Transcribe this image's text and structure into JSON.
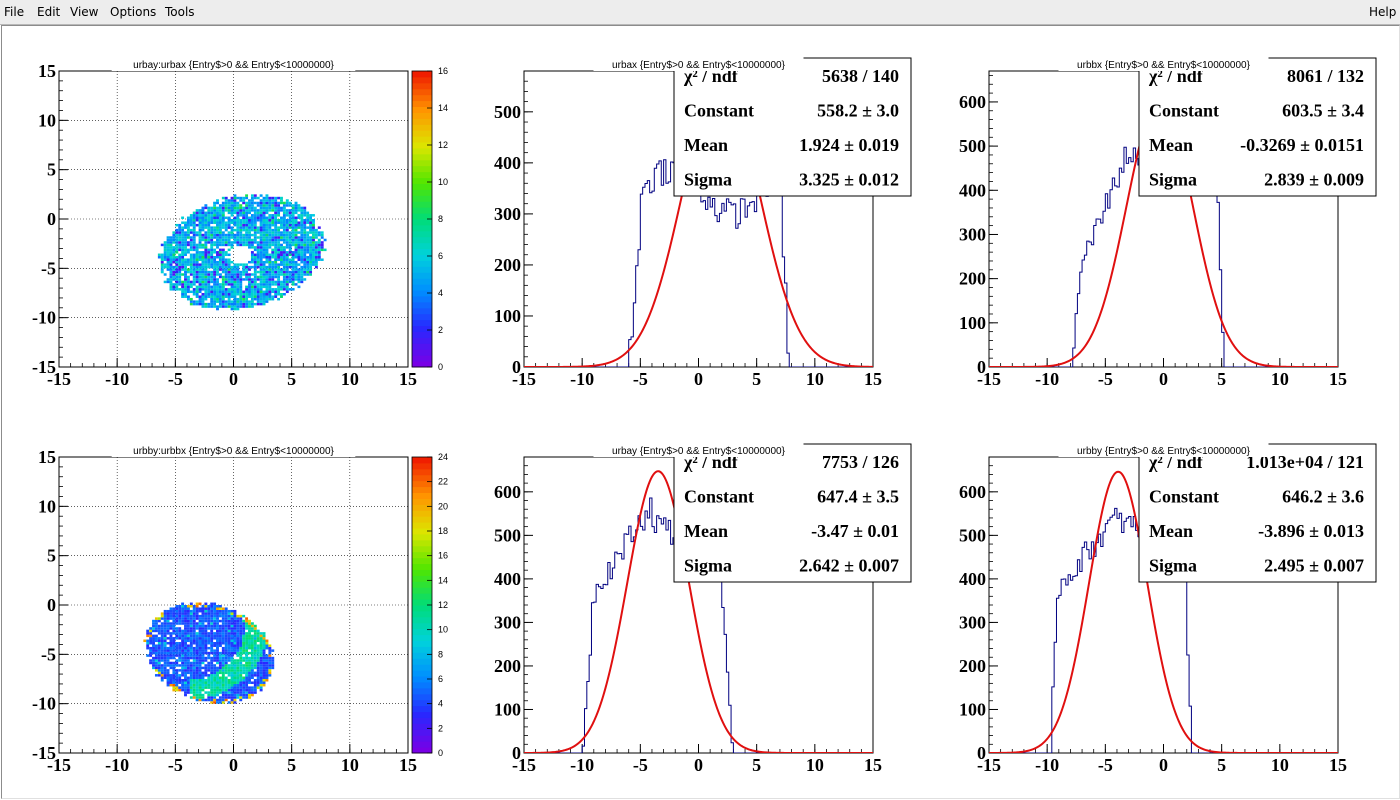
{
  "menu": {
    "file": "File",
    "edit": "Edit",
    "view": "View",
    "options": "Options",
    "tools": "Tools",
    "help": "Help"
  },
  "colors": {
    "histogram_line": "#000080",
    "fit_curve": "#e01010",
    "grid": "#000000"
  },
  "pads": [
    {
      "id": "urbay-vs-urbax",
      "title": "urbay:urbax {Entry$>0 && Entry$<10000000}",
      "kind": "scatter2d",
      "xlim": [
        -15,
        15
      ],
      "ylim": [
        -15,
        15
      ],
      "xticks": [
        "-15",
        "-10",
        "-5",
        "0",
        "5",
        "10",
        "15"
      ],
      "yticks": [
        "-15",
        "-10",
        "-5",
        "0",
        "5",
        "10",
        "15"
      ],
      "palette_ticks": [
        "0",
        "2",
        "4",
        "6",
        "8",
        "10",
        "12",
        "14",
        "16"
      ],
      "palette_max": 16
    },
    {
      "id": "urbax",
      "title": "urbax {Entry$>0 && Entry$<10000000}",
      "kind": "hist1d",
      "xlim": [
        -15,
        15
      ],
      "ylim": [
        0,
        580
      ],
      "xticks": [
        "-15",
        "-10",
        "-5",
        "0",
        "5",
        "10",
        "15"
      ],
      "yticks": [
        "0",
        "100",
        "200",
        "300",
        "400",
        "500"
      ],
      "stats": [
        {
          "label": "χ² / ndf",
          "value": "5638 / 140"
        },
        {
          "label": "Constant",
          "value": "558.2 ± 3.0"
        },
        {
          "label": "Mean",
          "value": "1.924 ± 0.019"
        },
        {
          "label": "Sigma",
          "value": "3.325 ± 0.012"
        }
      ],
      "fit": {
        "constant": 558.2,
        "mean": 1.924,
        "sigma": 3.325
      }
    },
    {
      "id": "urbbx",
      "title": "urbbx {Entry$>0 && Entry$<10000000}",
      "kind": "hist1d",
      "xlim": [
        -15,
        15
      ],
      "ylim": [
        0,
        670
      ],
      "xticks": [
        "-15",
        "-10",
        "-5",
        "0",
        "5",
        "10",
        "15"
      ],
      "yticks": [
        "0",
        "100",
        "200",
        "300",
        "400",
        "500",
        "600"
      ],
      "stats": [
        {
          "label": "χ² / ndf",
          "value": "8061 / 132"
        },
        {
          "label": "Constant",
          "value": "603.5 ± 3.4"
        },
        {
          "label": "Mean",
          "value": "-0.3269 ± 0.0151"
        },
        {
          "label": "Sigma",
          "value": "2.839 ± 0.009"
        }
      ],
      "fit": {
        "constant": 603.5,
        "mean": -0.3269,
        "sigma": 2.839
      }
    },
    {
      "id": "urbby-vs-urbbx",
      "title": "urbby:urbbx {Entry$>0 && Entry$<10000000}",
      "kind": "scatter2d",
      "xlim": [
        -15,
        15
      ],
      "ylim": [
        -15,
        15
      ],
      "xticks": [
        "-15",
        "-10",
        "-5",
        "0",
        "5",
        "10",
        "15"
      ],
      "yticks": [
        "-15",
        "-10",
        "-5",
        "0",
        "5",
        "10",
        "15"
      ],
      "palette_ticks": [
        "0",
        "2",
        "4",
        "6",
        "8",
        "10",
        "12",
        "14",
        "16",
        "18",
        "20",
        "22",
        "24"
      ],
      "palette_max": 24
    },
    {
      "id": "urbay",
      "title": "urbay {Entry$>0 && Entry$<10000000}",
      "kind": "hist1d",
      "xlim": [
        -15,
        15
      ],
      "ylim": [
        0,
        680
      ],
      "xticks": [
        "-15",
        "-10",
        "-5",
        "0",
        "5",
        "10",
        "15"
      ],
      "yticks": [
        "0",
        "100",
        "200",
        "300",
        "400",
        "500",
        "600"
      ],
      "stats": [
        {
          "label": "χ² / ndf",
          "value": "7753 / 126"
        },
        {
          "label": "Constant",
          "value": "647.4 ± 3.5"
        },
        {
          "label": "Mean",
          "value": "-3.47 ± 0.01"
        },
        {
          "label": "Sigma",
          "value": "2.642 ± 0.007"
        }
      ],
      "fit": {
        "constant": 647.4,
        "mean": -3.47,
        "sigma": 2.642
      }
    },
    {
      "id": "urbby",
      "title": "urbby {Entry$>0 && Entry$<10000000}",
      "kind": "hist1d",
      "xlim": [
        -15,
        15
      ],
      "ylim": [
        0,
        680
      ],
      "xticks": [
        "-15",
        "-10",
        "-5",
        "0",
        "5",
        "10",
        "15"
      ],
      "yticks": [
        "0",
        "100",
        "200",
        "300",
        "400",
        "500",
        "600"
      ],
      "stats": [
        {
          "label": "χ² / ndf",
          "value": "1.013e+04 / 121"
        },
        {
          "label": "Constant",
          "value": "646.2 ± 3.6"
        },
        {
          "label": "Mean",
          "value": "-3.896 ± 0.013"
        },
        {
          "label": "Sigma",
          "value": "2.495 ± 0.007"
        }
      ],
      "fit": {
        "constant": 646.2,
        "mean": -3.896,
        "sigma": 2.495
      }
    }
  ]
}
